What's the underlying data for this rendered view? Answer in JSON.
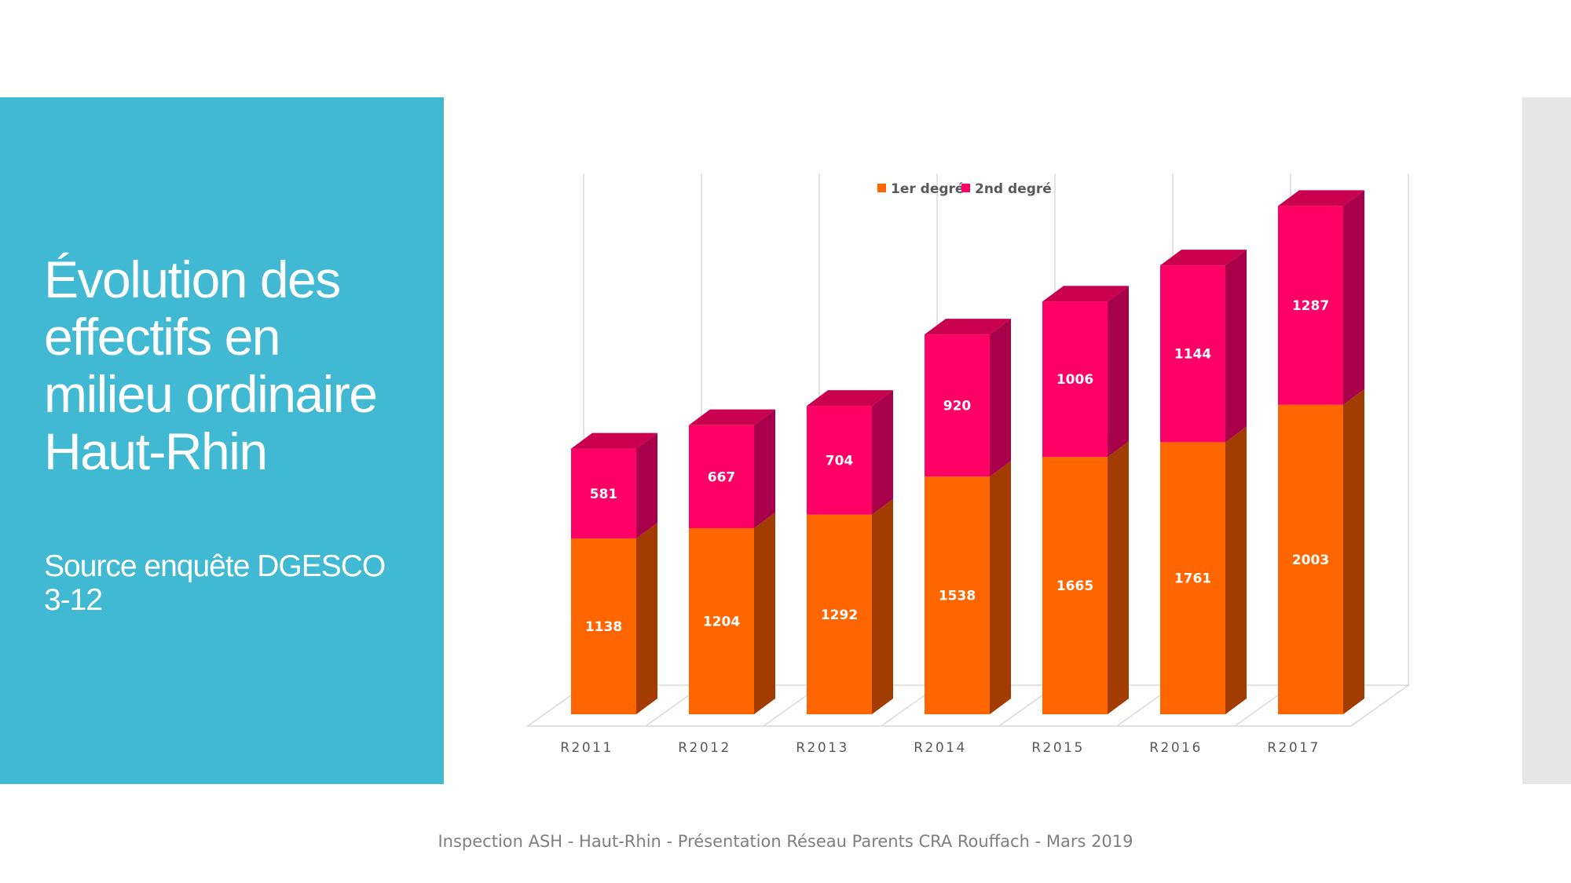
{
  "slide": {
    "title_lines": [
      "Évolution des",
      "effectifs en",
      "milieu ordinaire",
      "Haut-Rhin"
    ],
    "subtitle_lines": [
      "Source enquête DGESCO",
      "3-12"
    ],
    "footer": "Inspection ASH - Haut-Rhin - Présentation Réseau Parents CRA Rouffach - Mars 2019"
  },
  "colors": {
    "panel": "#41b9d3",
    "first_degree": "#ff6600",
    "first_degree_side": "#a33c00",
    "second_degree": "#ff0066",
    "second_degree_side": "#a8004a",
    "second_degree_top": "#c8004f"
  },
  "chart_data": {
    "type": "bar",
    "stacked": true,
    "style": "3d-column",
    "categories": [
      "R2011",
      "R2012",
      "R2013",
      "R2014",
      "R2015",
      "R2016",
      "R2017"
    ],
    "series": [
      {
        "name": "1er degré",
        "values": [
          1138,
          1204,
          1292,
          1538,
          1665,
          1761,
          2003
        ]
      },
      {
        "name": "2nd degré",
        "values": [
          581,
          667,
          704,
          920,
          1006,
          1144,
          1287
        ]
      }
    ],
    "title": "",
    "xlabel": "",
    "ylabel": "",
    "ylim": [
      0,
      3500
    ],
    "grid": true,
    "legend_position": "top-center",
    "data_labels": true
  }
}
